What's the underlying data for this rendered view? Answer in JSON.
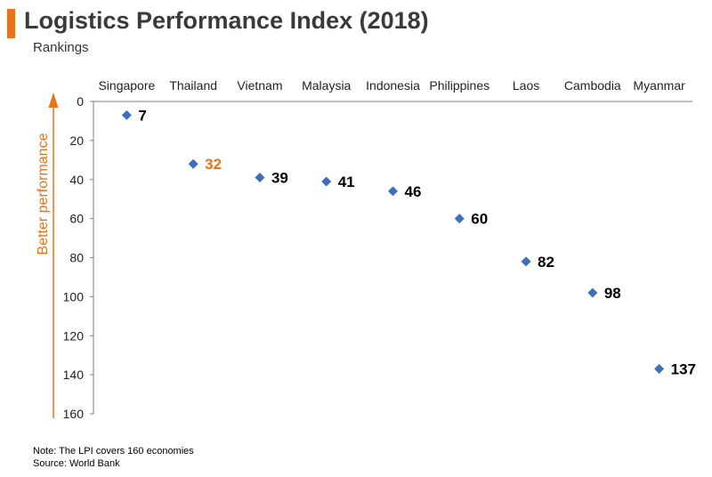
{
  "header": {
    "title": "Logistics Performance Index (2018)",
    "subtitle": "Rankings"
  },
  "colors": {
    "accent": "#E8731A",
    "marker": "#3D6FB6",
    "axis": "#7f7f7f",
    "highlight": "#E8731A"
  },
  "chart_data": {
    "type": "scatter",
    "categories": [
      "Singapore",
      "Thailand",
      "Vietnam",
      "Malaysia",
      "Indonesia",
      "Philippines",
      "Laos",
      "Cambodia",
      "Myanmar"
    ],
    "values": [
      7,
      32,
      39,
      41,
      46,
      60,
      82,
      98,
      137
    ],
    "data_labels": [
      "7",
      "32",
      "39",
      "41",
      "46",
      "60",
      "82",
      "98",
      "137"
    ],
    "highlight_category": "Thailand",
    "ylabel": "Better performance",
    "ylim": [
      0,
      160
    ],
    "y_reversed": true,
    "y_ticks": [
      0,
      20,
      40,
      60,
      80,
      100,
      120,
      140,
      160
    ],
    "x_axis_position": "top",
    "grid": false,
    "marker": "diamond"
  },
  "footer": {
    "note": "Note: The LPI covers 160 economies",
    "source": "Source: World Bank"
  }
}
